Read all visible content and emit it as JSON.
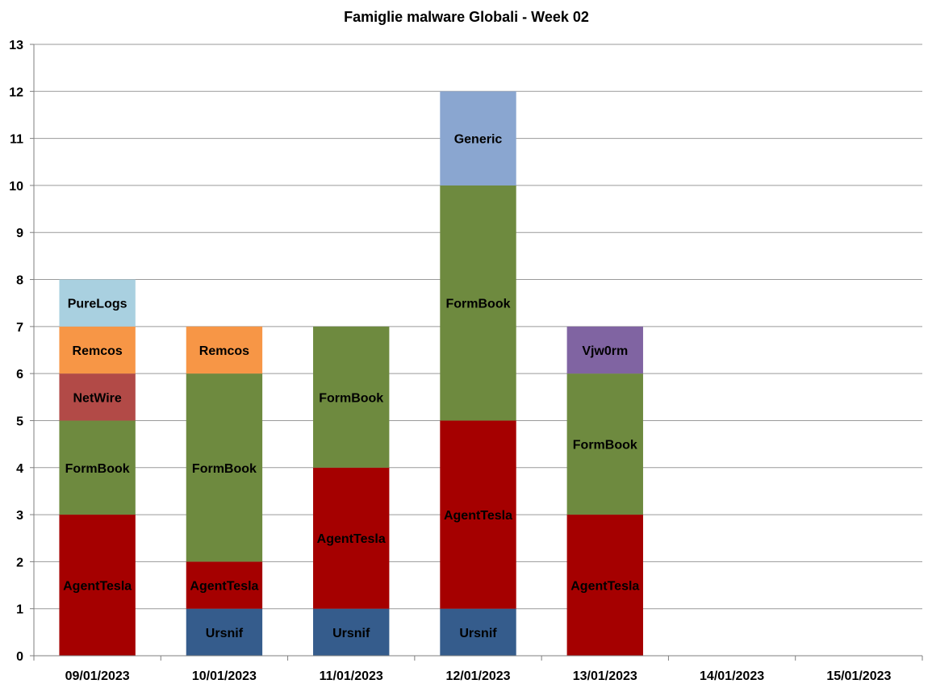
{
  "chart_data": {
    "type": "bar",
    "stacked": true,
    "title": "Famiglie  malware Globali - Week 02",
    "xlabel": "",
    "ylabel": "",
    "ylim": [
      0,
      13
    ],
    "yticks": [
      0,
      1,
      2,
      3,
      4,
      5,
      6,
      7,
      8,
      9,
      10,
      11,
      12,
      13
    ],
    "grid": true,
    "legend": "none",
    "categories": [
      "09/01/2023",
      "10/01/2023",
      "11/01/2023",
      "12/01/2023",
      "13/01/2023",
      "14/01/2023",
      "15/01/2023"
    ],
    "series": [
      {
        "name": "Ursnif",
        "color": "#355C8C",
        "values": [
          0,
          1,
          1,
          1,
          0,
          0,
          0
        ]
      },
      {
        "name": "AgentTesla",
        "color": "#A50000",
        "values": [
          3,
          1,
          3,
          4,
          3,
          0,
          0
        ]
      },
      {
        "name": "FormBook",
        "color": "#6E8A3F",
        "values": [
          2,
          4,
          3,
          5,
          3,
          0,
          0
        ]
      },
      {
        "name": "NetWire",
        "color": "#B24A47",
        "values": [
          1,
          0,
          0,
          0,
          0,
          0,
          0
        ]
      },
      {
        "name": "Remcos",
        "color": "#F79646",
        "values": [
          1,
          1,
          0,
          0,
          0,
          0,
          0
        ]
      },
      {
        "name": "PureLogs",
        "color": "#A9D0E0",
        "values": [
          1,
          0,
          0,
          0,
          0,
          0,
          0
        ]
      },
      {
        "name": "Generic",
        "color": "#8AA6D0",
        "values": [
          0,
          0,
          0,
          2,
          0,
          0,
          0
        ]
      },
      {
        "name": "Vjw0rm",
        "color": "#8064A2",
        "values": [
          0,
          0,
          0,
          0,
          1,
          0,
          0
        ]
      }
    ]
  }
}
